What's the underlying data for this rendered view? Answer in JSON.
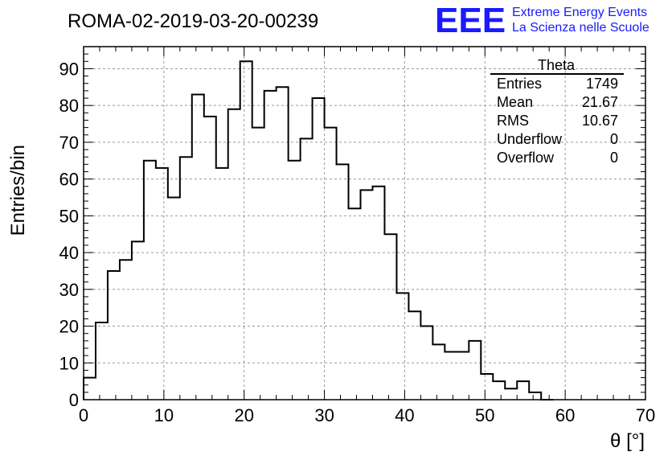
{
  "header": {
    "title": "ROMA-02-2019-03-20-00239",
    "logo": "EEE",
    "logo_line1": "Extreme Energy Events",
    "logo_line2": "La Scienza nelle Scuole"
  },
  "colors": {
    "histogram": "#000000",
    "grid": "#9a9a9a",
    "logo": "#1a1aff"
  },
  "stats": {
    "title": "Theta",
    "rows": [
      {
        "label": "Entries",
        "value": "1749"
      },
      {
        "label": "Mean",
        "value": "21.67"
      },
      {
        "label": "RMS",
        "value": "10.67"
      },
      {
        "label": "Underflow",
        "value": "0"
      },
      {
        "label": "Overflow",
        "value": "0"
      }
    ]
  },
  "chart_data": {
    "type": "histogram",
    "xlabel": "θ [°]",
    "ylabel": "Entries/bin",
    "xlim": [
      0,
      70
    ],
    "ylim": [
      0,
      96
    ],
    "grid": true,
    "bin_width": 1.5,
    "bin_edges_start": 0,
    "x_ticks": [
      "0",
      "10",
      "20",
      "30",
      "40",
      "50",
      "60",
      "70"
    ],
    "y_ticks": [
      "0",
      "10",
      "20",
      "30",
      "40",
      "50",
      "60",
      "70",
      "80",
      "90"
    ],
    "values": [
      6,
      21,
      35,
      38,
      43,
      65,
      63,
      55,
      66,
      83,
      77,
      63,
      79,
      92,
      74,
      84,
      85,
      65,
      71,
      82,
      74,
      64,
      52,
      57,
      58,
      45,
      29,
      24,
      20,
      15,
      13,
      13,
      16,
      7,
      5,
      3,
      5,
      2,
      0
    ]
  }
}
